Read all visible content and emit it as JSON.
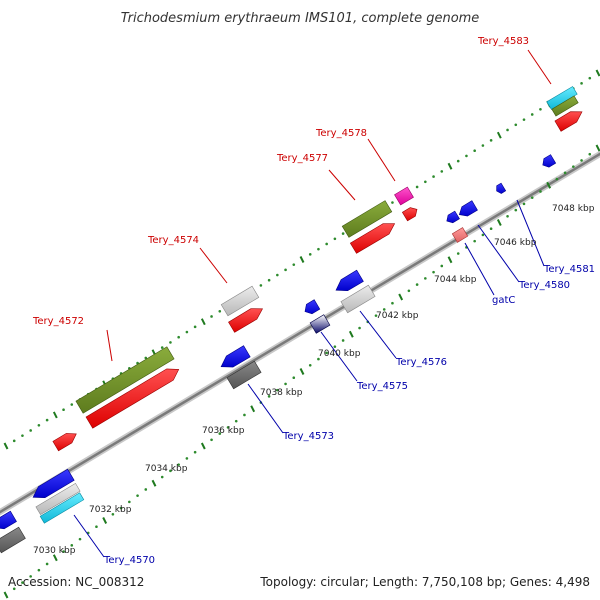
{
  "title": "Trichodesmium erythraeum IMS101, complete genome",
  "accession": "Accession: NC_008312",
  "topology": "Topology: circular; Length: 7,750,108 bp; Genes: 4,498",
  "colors": {
    "top_label": "#cc0000",
    "bottom_label": "#0000aa",
    "backbone": "#8c8c8c",
    "tick_dot": "#228b22"
  },
  "kbp_ticks": [
    "7030 kbp",
    "7032 kbp",
    "7034 kbp",
    "7036 kbp",
    "7038 kbp",
    "7040 kbp",
    "7042 kbp",
    "7044 kbp",
    "7046 kbp",
    "7048 kbp"
  ],
  "top_labels": [
    {
      "text": "Tery_4572"
    },
    {
      "text": "Tery_4574"
    },
    {
      "text": "Tery_4577"
    },
    {
      "text": "Tery_4578"
    },
    {
      "text": "Tery_4583"
    }
  ],
  "bottom_labels": [
    {
      "text": "Tery_4570"
    },
    {
      "text": "Tery_4573"
    },
    {
      "text": "Tery_4575"
    },
    {
      "text": "Tery_4576"
    },
    {
      "text": "gatC"
    },
    {
      "text": "Tery_4580"
    },
    {
      "text": "Tery_4581"
    }
  ]
}
